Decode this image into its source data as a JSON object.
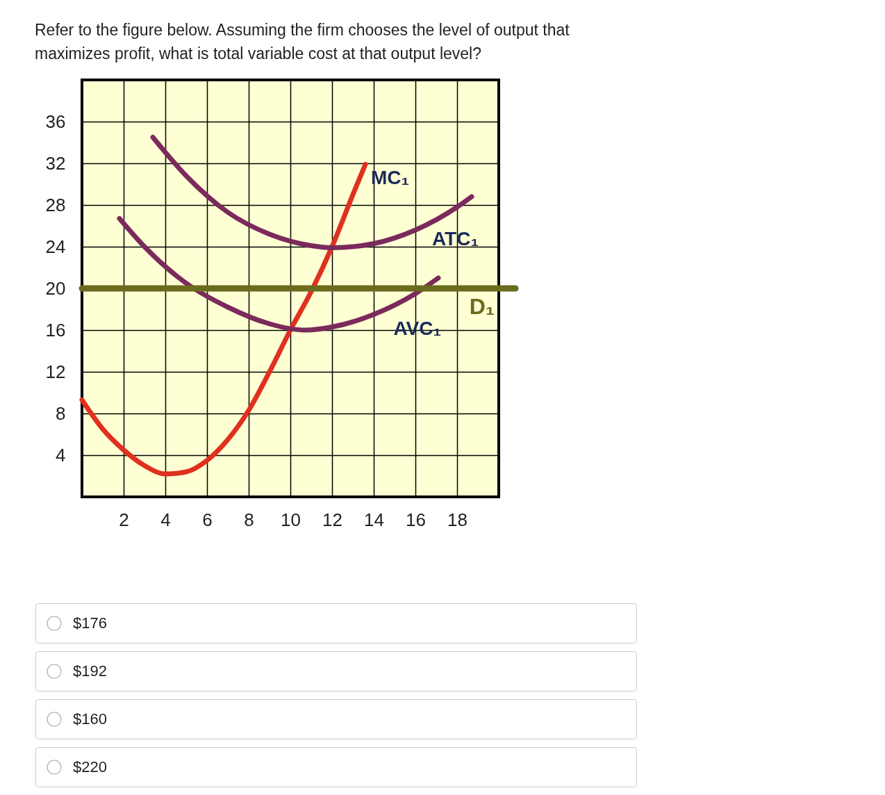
{
  "chart_data": {
    "type": "line",
    "title": "Refer to the figure below. Assuming the firm chooses the level of output that maximizes profit, what is total variable cost at that output level?",
    "annotations": [
      "$176",
      "$192",
      "$160",
      "$220"
    ],
    "xlim": [
      0,
      20
    ],
    "ylim": [
      0,
      40
    ],
    "xticks": [
      2,
      4,
      6,
      8,
      10,
      12,
      14,
      16,
      18
    ],
    "yticks": [
      4,
      8,
      12,
      16,
      20,
      24,
      28,
      32,
      36
    ],
    "grid": true,
    "series": [
      {
        "name": "MC₁",
        "color": "#e0301e",
        "x": [
          0,
          1,
          2,
          3,
          4,
          5,
          6,
          7,
          8,
          9,
          10,
          11,
          12,
          13,
          13.6
        ],
        "values": [
          9.3,
          6.5,
          4.5,
          3,
          2.2,
          2.4,
          3.5,
          5.5,
          8.3,
          12,
          16,
          19.7,
          24,
          29,
          31.9
        ]
      },
      {
        "name": "ATC₁",
        "color": "#7b2a5c",
        "x": [
          3.4,
          5,
          7,
          9,
          11,
          12,
          14,
          16,
          18,
          18.7
        ],
        "values": [
          34.5,
          30.8,
          27.3,
          25.2,
          24.1,
          23.9,
          24.3,
          25.6,
          27.8,
          28.8
        ]
      },
      {
        "name": "AVC₁",
        "color": "#7b2a5c",
        "x": [
          1.8,
          3,
          5,
          7,
          9,
          10.7,
          12,
          14,
          16,
          17.1
        ],
        "values": [
          26.7,
          24,
          20.5,
          18.2,
          16.6,
          16,
          16.3,
          17.5,
          19.5,
          21
        ]
      }
    ],
    "ref_lines": [
      {
        "axis": "y",
        "value": 20,
        "label": "D₁",
        "color": "#6b6b1e"
      }
    ]
  }
}
